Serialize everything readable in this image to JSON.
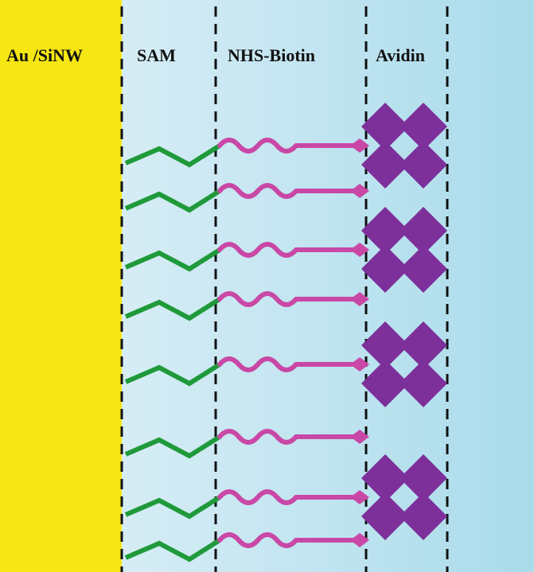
{
  "labels": {
    "substrate": "Au /SiNW",
    "sam": "SAM",
    "nhs_biotin": "NHS-Biotin",
    "avidin": "Avidin"
  },
  "colors": {
    "substrate": "#f5e614",
    "background_light": "#e4f2f8",
    "background_dark": "#a9dbeb",
    "sam_chain": "#1f9a3a",
    "biotin_linker": "#c948a6",
    "avidin": "#7d2f9a",
    "divider": "#111111"
  },
  "chains": [
    {
      "avidin_bound": true
    },
    {
      "avidin_bound": false
    },
    {
      "avidin_bound": true
    },
    {
      "avidin_bound": false
    },
    {
      "avidin_bound": true
    },
    {
      "avidin_bound": false
    },
    {
      "avidin_bound": true
    },
    {
      "avidin_bound": false
    }
  ]
}
